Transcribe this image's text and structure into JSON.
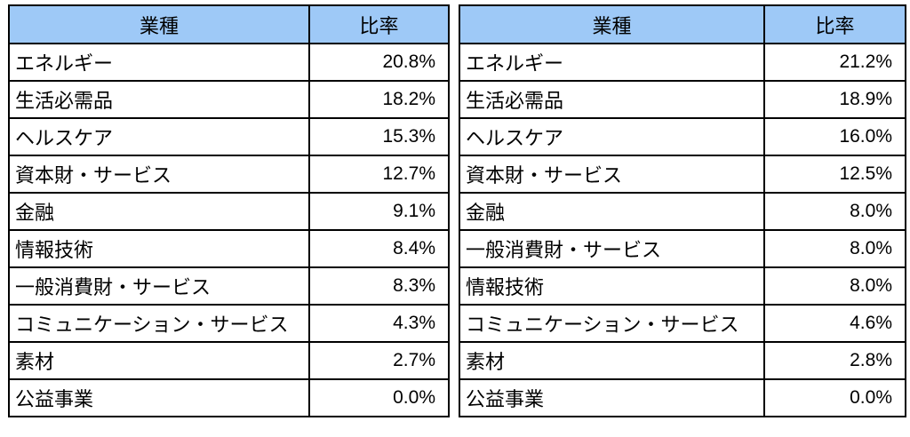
{
  "colors": {
    "header_bg": "#9ec9f7",
    "border": "#000000",
    "cell_bg": "#ffffff"
  },
  "tables": [
    {
      "headers": {
        "sector": "業種",
        "ratio": "比率"
      },
      "rows": [
        {
          "sector": "エネルギー",
          "ratio": "20.8%"
        },
        {
          "sector": "生活必需品",
          "ratio": "18.2%"
        },
        {
          "sector": "ヘルスケア",
          "ratio": "15.3%"
        },
        {
          "sector": "資本財・サービス",
          "ratio": "12.7%"
        },
        {
          "sector": "金融",
          "ratio": "9.1%"
        },
        {
          "sector": "情報技術",
          "ratio": "8.4%"
        },
        {
          "sector": "一般消費財・サービス",
          "ratio": "8.3%"
        },
        {
          "sector": "コミュニケーション・サービス",
          "ratio": "4.3%"
        },
        {
          "sector": "素材",
          "ratio": "2.7%"
        },
        {
          "sector": "公益事業",
          "ratio": "0.0%"
        }
      ]
    },
    {
      "headers": {
        "sector": "業種",
        "ratio": "比率"
      },
      "rows": [
        {
          "sector": "エネルギー",
          "ratio": "21.2%"
        },
        {
          "sector": "生活必需品",
          "ratio": "18.9%"
        },
        {
          "sector": "ヘルスケア",
          "ratio": "16.0%"
        },
        {
          "sector": "資本財・サービス",
          "ratio": "12.5%"
        },
        {
          "sector": "金融",
          "ratio": "8.0%"
        },
        {
          "sector": "一般消費財・サービス",
          "ratio": "8.0%"
        },
        {
          "sector": "情報技術",
          "ratio": "8.0%"
        },
        {
          "sector": "コミュニケーション・サービス",
          "ratio": "4.6%"
        },
        {
          "sector": "素材",
          "ratio": "2.8%"
        },
        {
          "sector": "公益事業",
          "ratio": "0.0%"
        }
      ]
    }
  ]
}
